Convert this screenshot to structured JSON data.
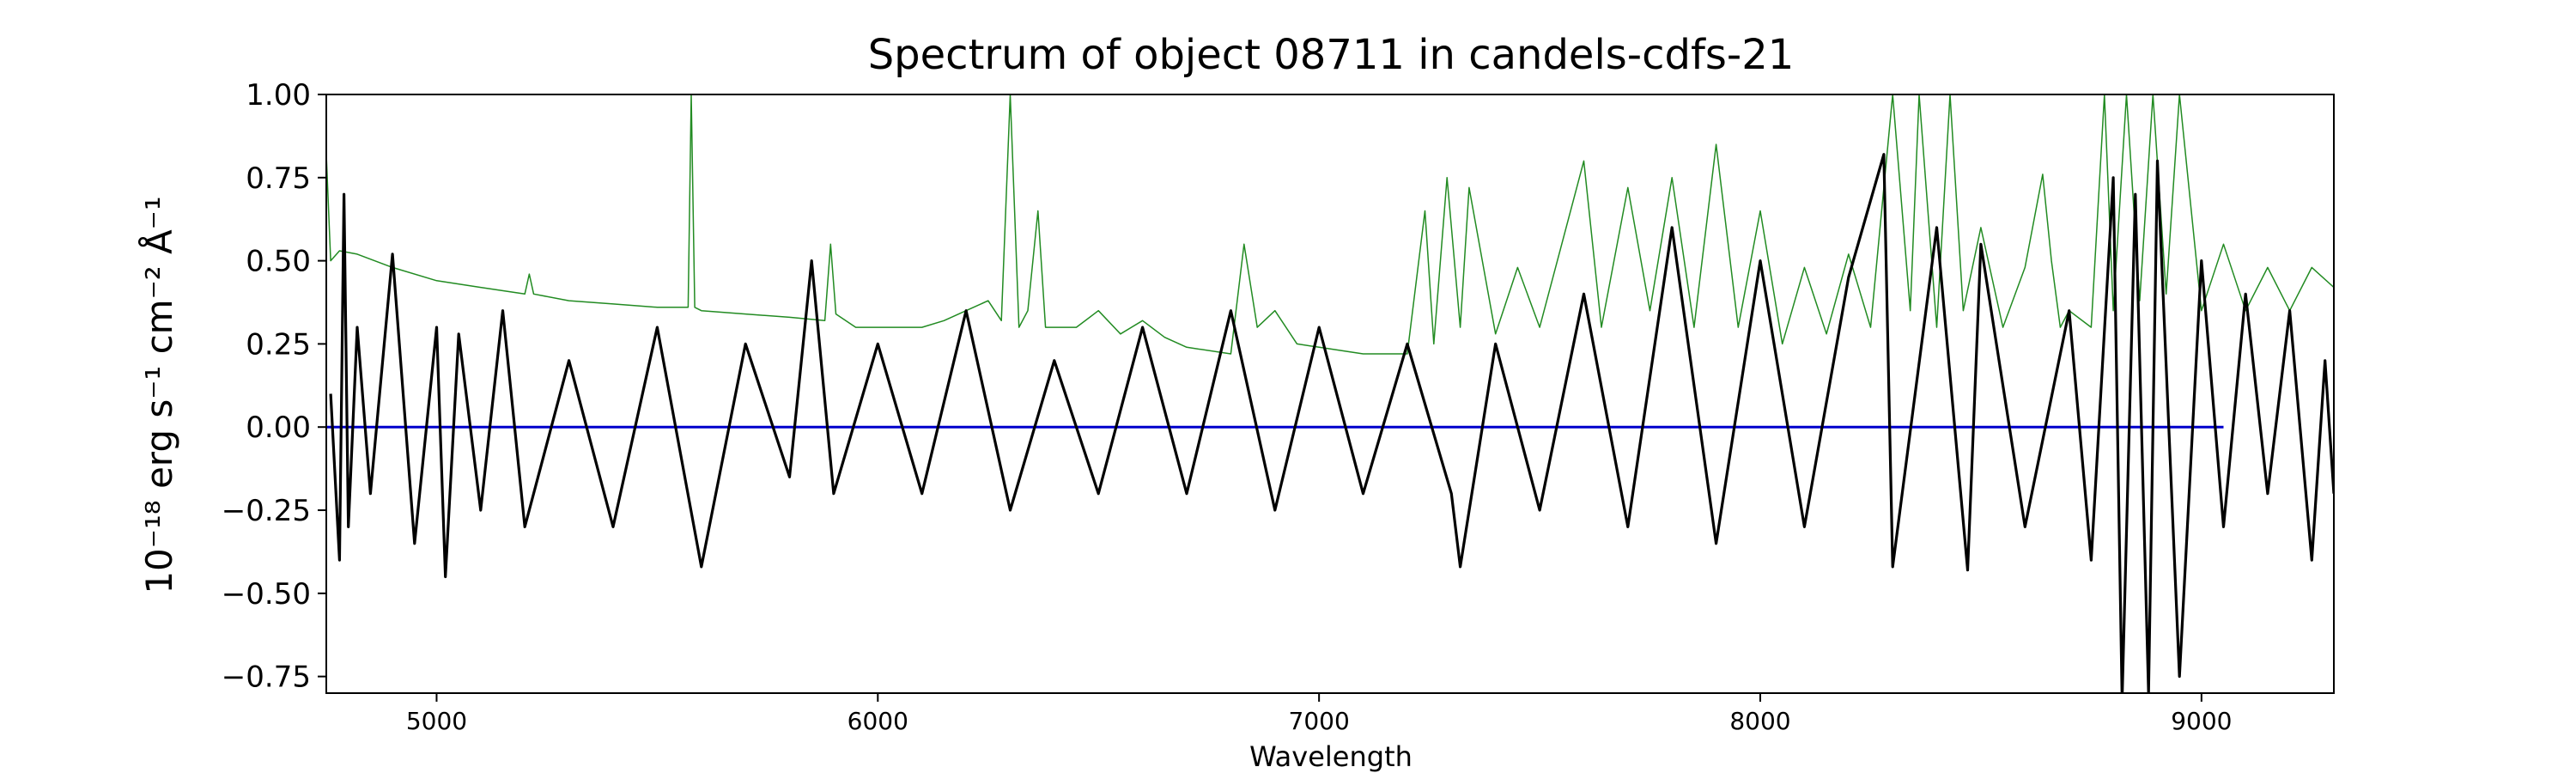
{
  "chart_data": {
    "type": "line",
    "title": "Spectrum of object 08711 in candels-cdfs-21",
    "xlabel": "Wavelength",
    "ylabel": "10⁻¹⁸ erg s⁻¹ cm⁻² Å⁻¹",
    "xlim": [
      4750,
      9300
    ],
    "ylim": [
      -0.8,
      1.0
    ],
    "x_ticks": [
      5000,
      6000,
      7000,
      8000,
      9000
    ],
    "x_tick_labels": [
      "5000",
      "6000",
      "7000",
      "8000",
      "9000"
    ],
    "y_ticks": [
      1.0,
      0.75,
      0.5,
      0.25,
      0.0,
      -0.25,
      -0.5,
      -0.75
    ],
    "y_tick_labels": [
      "1.00",
      "0.75",
      "0.50",
      "0.25",
      "0.00",
      "−0.25",
      "−0.50",
      "−0.75"
    ],
    "grid": false,
    "series": [
      {
        "role": "contamination",
        "color": "#228b22",
        "x": [
          4750,
          4760,
          4780,
          4820,
          4900,
          5000,
          5100,
          5200,
          5210,
          5220,
          5300,
          5400,
          5500,
          5570,
          5577,
          5585,
          5600,
          5700,
          5800,
          5880,
          5893,
          5905,
          5950,
          6000,
          6100,
          6150,
          6200,
          6250,
          6280,
          6300,
          6320,
          6340,
          6363,
          6380,
          6450,
          6500,
          6550,
          6600,
          6650,
          6700,
          6800,
          6830,
          6860,
          6900,
          6950,
          7000,
          7100,
          7200,
          7240,
          7260,
          7290,
          7320,
          7340,
          7400,
          7450,
          7500,
          7550,
          7600,
          7640,
          7700,
          7750,
          7800,
          7850,
          7900,
          7950,
          8000,
          8050,
          8100,
          8150,
          8200,
          8250,
          8300,
          8340,
          8360,
          8400,
          8430,
          8460,
          8500,
          8550,
          8600,
          8640,
          8660,
          8680,
          8700,
          8750,
          8780,
          8800,
          8830,
          8860,
          8890,
          8920,
          8950,
          9000,
          9050,
          9100,
          9150,
          9200,
          9250,
          9300
        ],
        "y": [
          0.82,
          0.5,
          0.53,
          0.52,
          0.48,
          0.44,
          0.42,
          0.4,
          0.46,
          0.4,
          0.38,
          0.37,
          0.36,
          0.36,
          1.0,
          0.36,
          0.35,
          0.34,
          0.33,
          0.32,
          0.55,
          0.34,
          0.3,
          0.3,
          0.3,
          0.32,
          0.35,
          0.38,
          0.32,
          1.0,
          0.3,
          0.35,
          0.65,
          0.3,
          0.3,
          0.35,
          0.28,
          0.32,
          0.27,
          0.24,
          0.22,
          0.55,
          0.3,
          0.35,
          0.25,
          0.24,
          0.22,
          0.22,
          0.65,
          0.25,
          0.75,
          0.3,
          0.72,
          0.28,
          0.48,
          0.3,
          0.55,
          0.8,
          0.3,
          0.72,
          0.35,
          0.75,
          0.3,
          0.85,
          0.3,
          0.65,
          0.25,
          0.48,
          0.28,
          0.52,
          0.3,
          1.0,
          0.35,
          1.0,
          0.3,
          1.0,
          0.35,
          0.6,
          0.3,
          0.48,
          0.76,
          0.5,
          0.3,
          0.35,
          0.3,
          1.0,
          0.35,
          1.0,
          0.38,
          1.0,
          0.4,
          1.0,
          0.35,
          0.55,
          0.35,
          0.48,
          0.35,
          0.48,
          0.42
        ]
      },
      {
        "role": "spectrum",
        "color": "#000000",
        "x": [
          4760,
          4780,
          4790,
          4800,
          4820,
          4850,
          4900,
          4950,
          5000,
          5020,
          5050,
          5100,
          5150,
          5200,
          5300,
          5400,
          5500,
          5600,
          5700,
          5800,
          5850,
          5900,
          6000,
          6100,
          6200,
          6300,
          6400,
          6500,
          6600,
          6700,
          6800,
          6900,
          7000,
          7100,
          7200,
          7300,
          7320,
          7400,
          7500,
          7600,
          7700,
          7800,
          7900,
          8000,
          8100,
          8200,
          8280,
          8300,
          8400,
          8470,
          8500,
          8600,
          8700,
          8750,
          8800,
          8820,
          8850,
          8880,
          8900,
          8950,
          9000,
          9050,
          9100,
          9150,
          9200,
          9250,
          9280,
          9300
        ],
        "y": [
          0.1,
          -0.4,
          0.7,
          -0.3,
          0.3,
          -0.2,
          0.52,
          -0.35,
          0.3,
          -0.45,
          0.28,
          -0.25,
          0.35,
          -0.3,
          0.2,
          -0.3,
          0.3,
          -0.42,
          0.25,
          -0.15,
          0.5,
          -0.2,
          0.25,
          -0.2,
          0.35,
          -0.25,
          0.2,
          -0.2,
          0.3,
          -0.2,
          0.35,
          -0.25,
          0.3,
          -0.2,
          0.25,
          -0.2,
          -0.42,
          0.25,
          -0.25,
          0.4,
          -0.3,
          0.6,
          -0.35,
          0.5,
          -0.3,
          0.45,
          0.82,
          -0.42,
          0.6,
          -0.43,
          0.55,
          -0.3,
          0.35,
          -0.4,
          0.75,
          -0.82,
          0.7,
          -0.8,
          0.8,
          -0.75,
          0.5,
          -0.3,
          0.4,
          -0.2,
          0.35,
          -0.4,
          0.2,
          -0.2
        ]
      },
      {
        "role": "zero",
        "color": "#0000cc",
        "x": [
          4750,
          9050
        ],
        "y": [
          0,
          0
        ]
      }
    ]
  }
}
